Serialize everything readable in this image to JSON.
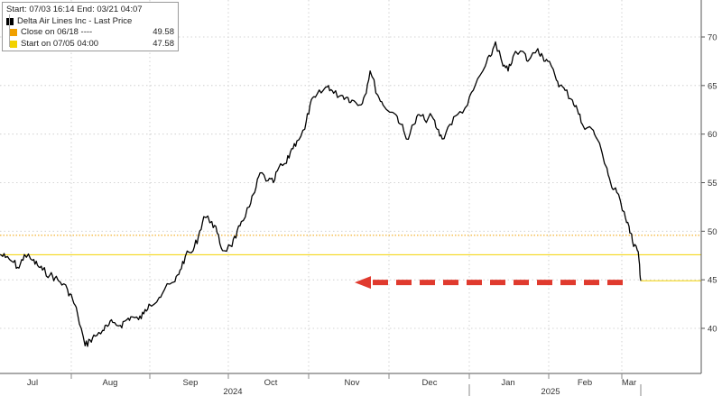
{
  "legend": {
    "header": "Start: 07/03 16:14 End: 03/21 04:07",
    "items": [
      {
        "label": "Delta Air Lines Inc - Last Price",
        "value": "",
        "color": "#000000"
      },
      {
        "label": "Close on 06/18 ----",
        "value": "49.58",
        "color": "#f0a000"
      },
      {
        "label": "Start on 07/05 04:00",
        "value": "47.58",
        "color": "#f2d200"
      }
    ]
  },
  "chart_data": {
    "type": "line",
    "title": "",
    "xlabel": "",
    "ylabel": "",
    "ylim": [
      37,
      72
    ],
    "y_ticks": [
      40,
      45,
      50,
      55,
      60,
      65,
      70
    ],
    "grid": true,
    "x_ticks": [
      "Jul",
      "Aug",
      "Sep",
      "Oct",
      "Nov",
      "Dec",
      "Jan",
      "Feb",
      "Mar"
    ],
    "year_labels": [
      "2024",
      "2025"
    ],
    "series": [
      {
        "name": "Delta Air Lines Inc - Last Price",
        "color": "#000000",
        "x": [
          "2024-07-03",
          "2024-07-05",
          "2024-07-08",
          "2024-07-10",
          "2024-07-12",
          "2024-07-15",
          "2024-07-17",
          "2024-07-19",
          "2024-07-22",
          "2024-07-24",
          "2024-07-26",
          "2024-07-29",
          "2024-07-31",
          "2024-08-02",
          "2024-08-05",
          "2024-08-07",
          "2024-08-09",
          "2024-08-12",
          "2024-08-14",
          "2024-08-16",
          "2024-08-19",
          "2024-08-21",
          "2024-08-23",
          "2024-08-26",
          "2024-08-28",
          "2024-08-30",
          "2024-09-03",
          "2024-09-05",
          "2024-09-09",
          "2024-09-11",
          "2024-09-13",
          "2024-09-16",
          "2024-09-18",
          "2024-09-20",
          "2024-09-23",
          "2024-09-25",
          "2024-09-27",
          "2024-09-30",
          "2024-10-02",
          "2024-10-04",
          "2024-10-07",
          "2024-10-09",
          "2024-10-11",
          "2024-10-14",
          "2024-10-16",
          "2024-10-18",
          "2024-10-21",
          "2024-10-23",
          "2024-10-25",
          "2024-10-28",
          "2024-10-30",
          "2024-11-01",
          "2024-11-04",
          "2024-11-06",
          "2024-11-08",
          "2024-11-11",
          "2024-11-13",
          "2024-11-15",
          "2024-11-18",
          "2024-11-20",
          "2024-11-22",
          "2024-11-25",
          "2024-11-27",
          "2024-12-02",
          "2024-12-04",
          "2024-12-06",
          "2024-12-09",
          "2024-12-11",
          "2024-12-13",
          "2024-12-16",
          "2024-12-18",
          "2024-12-20",
          "2024-12-23",
          "2024-12-26",
          "2024-12-30",
          "2025-01-02",
          "2025-01-06",
          "2025-01-08",
          "2025-01-10",
          "2025-01-13",
          "2025-01-15",
          "2025-01-17",
          "2025-01-21",
          "2025-01-23",
          "2025-01-27",
          "2025-01-29",
          "2025-01-31",
          "2025-02-03",
          "2025-02-05",
          "2025-02-07",
          "2025-02-10",
          "2025-02-12",
          "2025-02-14",
          "2025-02-18",
          "2025-02-20",
          "2025-02-24",
          "2025-02-26",
          "2025-02-28",
          "2025-03-03",
          "2025-03-05",
          "2025-03-07",
          "2025-03-10",
          "2025-03-11",
          "2025-03-12"
        ],
        "values": [
          47.6,
          47.3,
          46.8,
          46.2,
          47.6,
          47.0,
          46.5,
          46.0,
          45.5,
          45.2,
          44.8,
          44.0,
          43.0,
          41.5,
          38.2,
          38.8,
          39.2,
          39.8,
          40.2,
          40.6,
          40.3,
          40.8,
          41.2,
          40.9,
          41.5,
          42.5,
          43.2,
          44.0,
          44.8,
          46.0,
          47.4,
          48.0,
          49.5,
          51.5,
          51.0,
          49.8,
          48.0,
          48.5,
          49.3,
          51.0,
          52.5,
          54.0,
          56.0,
          55.2,
          55.0,
          56.5,
          57.0,
          58.5,
          59.3,
          60.5,
          63.0,
          63.8,
          64.5,
          65.0,
          64.2,
          64.0,
          63.8,
          63.5,
          63.0,
          64.0,
          66.5,
          64.0,
          63.0,
          62.0,
          61.0,
          59.5,
          61.0,
          62.0,
          61.5,
          61.8,
          60.5,
          59.5,
          61.0,
          62.0,
          63.0,
          65.0,
          67.0,
          68.0,
          69.5,
          67.0,
          66.5,
          68.0,
          68.5,
          67.5,
          68.8,
          68.0,
          67.5,
          66.0,
          65.0,
          64.5,
          63.5,
          62.5,
          61.0,
          60.5,
          59.5,
          56.5,
          54.5,
          54.0,
          52.0,
          50.5,
          49.0,
          48.0,
          47.0,
          44.9
        ]
      },
      {
        "name": "Close on 06/18 ----",
        "color": "#f0a000",
        "values": [
          49.58
        ]
      },
      {
        "name": "Start on 07/05 04:00",
        "color": "#f2d200",
        "values": [
          47.58
        ]
      }
    ],
    "last_value": 44.9,
    "annotation": {
      "type": "dashed-arrow",
      "color": "#e03a2e",
      "direction": "left",
      "y": 45
    }
  }
}
